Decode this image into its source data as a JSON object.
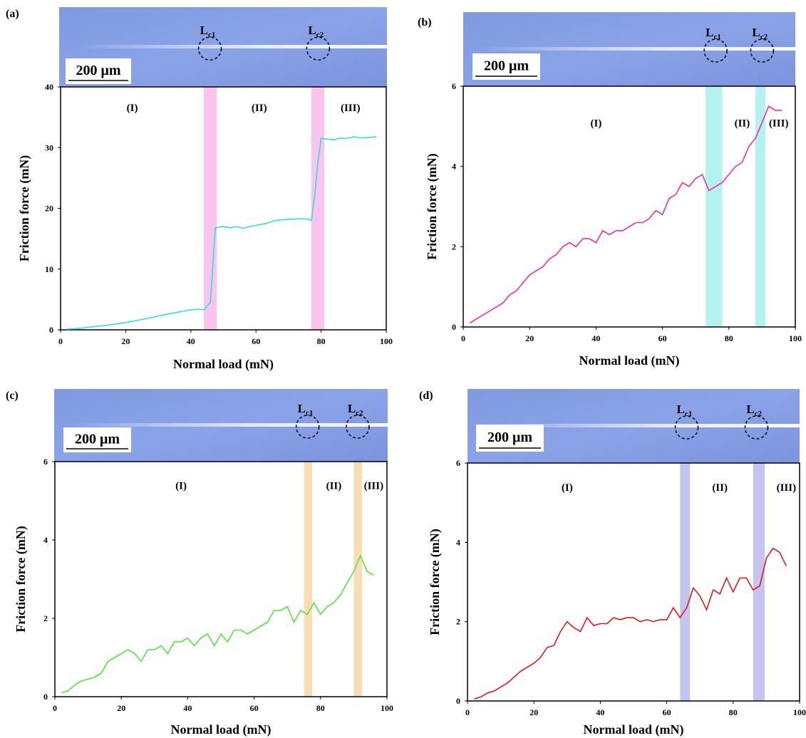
{
  "scale_bar_label": "200 μm",
  "critical_labels": {
    "lc1_main": "L",
    "lc1_sub": "c1",
    "lc2_main": "L",
    "lc2_sub": "c2"
  },
  "chart_data": [
    {
      "panel": "(a)",
      "type": "line",
      "xlabel": "Normal load (mN)",
      "ylabel": "Friction force (mN)",
      "xlim": [
        0,
        100
      ],
      "ylim": [
        0,
        40
      ],
      "xticks": [
        0,
        20,
        40,
        60,
        80,
        100
      ],
      "yticks": [
        0,
        10,
        20,
        30,
        40
      ],
      "line_color": "#33dde0",
      "band_color": "#f9c4ee",
      "bands": [
        [
          44,
          48
        ],
        [
          77,
          81
        ]
      ],
      "regions": [
        {
          "label": "(I)",
          "x": 22,
          "y": 36
        },
        {
          "label": "(II)",
          "x": 61,
          "y": 36
        },
        {
          "label": "(III)",
          "x": 89,
          "y": 36
        }
      ],
      "lc1_fraction": 0.46,
      "lc2_fraction": 0.79,
      "x": [
        2,
        5,
        10,
        15,
        20,
        25,
        28,
        32,
        36,
        40,
        42,
        44,
        46,
        47.5,
        50,
        52,
        54,
        56,
        58,
        60,
        63,
        66,
        70,
        74,
        76,
        77,
        78,
        79,
        80,
        82,
        84,
        86,
        88,
        90,
        92,
        95,
        97
      ],
      "y": [
        0.1,
        0.2,
        0.5,
        0.8,
        1.2,
        1.7,
        2.0,
        2.5,
        2.9,
        3.3,
        3.4,
        3.3,
        4.5,
        16.8,
        17.0,
        16.8,
        17.0,
        16.7,
        17.0,
        17.2,
        17.5,
        18.0,
        18.2,
        18.3,
        18.2,
        18.0,
        22.0,
        27.5,
        31.5,
        31.4,
        31.3,
        31.6,
        31.5,
        31.8,
        31.6,
        31.7,
        31.8
      ]
    },
    {
      "panel": "(b)",
      "type": "line",
      "xlabel": "Normal load (mN)",
      "ylabel": "Friction force (mN)",
      "xlim": [
        0,
        100
      ],
      "ylim": [
        0,
        6
      ],
      "xticks": [
        0,
        20,
        40,
        60,
        80,
        100
      ],
      "yticks": [
        0,
        2,
        4,
        6
      ],
      "line_color": "#ee2fa5",
      "band_color": "#b4f1f1",
      "bands": [
        [
          73,
          78
        ],
        [
          88,
          91
        ]
      ],
      "regions": [
        {
          "label": "(I)",
          "x": 40,
          "y": 5.0
        },
        {
          "label": "(II)",
          "x": 84,
          "y": 5.0
        },
        {
          "label": "(III)",
          "x": 95,
          "y": 5.0
        }
      ],
      "lc1_fraction": 0.76,
      "lc2_fraction": 0.9,
      "x": [
        2,
        4,
        6,
        8,
        10,
        12,
        14,
        16,
        18,
        20,
        22,
        24,
        26,
        28,
        30,
        32,
        34,
        36,
        38,
        40,
        42,
        44,
        46,
        48,
        50,
        52,
        54,
        56,
        58,
        60,
        62,
        64,
        66,
        68,
        70,
        72,
        74,
        76,
        78,
        80,
        82,
        84,
        86,
        88,
        90,
        92,
        94,
        96
      ],
      "y": [
        0.1,
        0.2,
        0.3,
        0.4,
        0.5,
        0.6,
        0.8,
        0.9,
        1.1,
        1.3,
        1.4,
        1.5,
        1.7,
        1.8,
        2.0,
        2.1,
        2.0,
        2.2,
        2.2,
        2.1,
        2.4,
        2.3,
        2.4,
        2.4,
        2.5,
        2.6,
        2.6,
        2.7,
        2.9,
        2.8,
        3.2,
        3.3,
        3.6,
        3.5,
        3.7,
        3.8,
        3.4,
        3.5,
        3.6,
        3.8,
        4.0,
        4.1,
        4.5,
        4.7,
        5.1,
        5.5,
        5.4,
        5.4
      ]
    },
    {
      "panel": "(c)",
      "type": "line",
      "xlabel": "Normal load (mN)",
      "ylabel": "Friction force (mN)",
      "xlim": [
        0,
        100
      ],
      "ylim": [
        0,
        6
      ],
      "xticks": [
        0,
        20,
        40,
        60,
        80,
        100
      ],
      "yticks": [
        0,
        2,
        4,
        6
      ],
      "line_color": "#55e443",
      "band_color": "#f8dcb3",
      "bands": [
        [
          75,
          77.5
        ],
        [
          90,
          92.5
        ]
      ],
      "regions": [
        {
          "label": "(I)",
          "x": 38,
          "y": 5.3
        },
        {
          "label": "(II)",
          "x": 84,
          "y": 5.3
        },
        {
          "label": "(III)",
          "x": 96,
          "y": 5.3
        }
      ],
      "lc1_fraction": 0.76,
      "lc2_fraction": 0.91,
      "x": [
        2,
        4,
        6,
        8,
        10,
        12,
        14,
        16,
        18,
        20,
        22,
        24,
        26,
        28,
        30,
        32,
        34,
        36,
        38,
        40,
        42,
        44,
        46,
        48,
        50,
        52,
        54,
        56,
        58,
        60,
        62,
        64,
        66,
        68,
        70,
        72,
        74,
        76,
        78,
        80,
        82,
        84,
        86,
        88,
        90,
        92,
        94,
        96
      ],
      "y": [
        0.1,
        0.15,
        0.3,
        0.4,
        0.45,
        0.5,
        0.6,
        0.9,
        1.0,
        1.1,
        1.2,
        1.1,
        0.9,
        1.2,
        1.2,
        1.3,
        1.1,
        1.4,
        1.4,
        1.5,
        1.3,
        1.5,
        1.6,
        1.3,
        1.6,
        1.4,
        1.7,
        1.7,
        1.6,
        1.7,
        1.8,
        1.9,
        2.2,
        2.2,
        2.3,
        1.9,
        2.2,
        2.1,
        2.4,
        2.1,
        2.3,
        2.4,
        2.6,
        2.9,
        3.2,
        3.6,
        3.2,
        3.1
      ]
    },
    {
      "panel": "(d)",
      "type": "line",
      "xlabel": "Normal load (mN)",
      "ylabel": "Friction force (mN)",
      "xlim": [
        0,
        100
      ],
      "ylim": [
        0,
        6
      ],
      "xticks": [
        0,
        20,
        40,
        60,
        80,
        100
      ],
      "yticks": [
        0,
        2,
        4,
        6
      ],
      "line_color": "#e01a1a",
      "band_color": "#c4c4ef",
      "bands": [
        [
          64,
          67
        ],
        [
          86,
          89.5
        ]
      ],
      "regions": [
        {
          "label": "(I)",
          "x": 30,
          "y": 5.3
        },
        {
          "label": "(II)",
          "x": 76,
          "y": 5.3
        },
        {
          "label": "(III)",
          "x": 96,
          "y": 5.3
        }
      ],
      "lc1_fraction": 0.66,
      "lc2_fraction": 0.87,
      "x": [
        2,
        4,
        6,
        8,
        10,
        12,
        14,
        16,
        18,
        20,
        22,
        24,
        26,
        28,
        30,
        32,
        34,
        36,
        38,
        40,
        42,
        44,
        46,
        48,
        50,
        52,
        54,
        56,
        58,
        60,
        62,
        64,
        66,
        68,
        70,
        72,
        74,
        76,
        78,
        80,
        82,
        84,
        86,
        88,
        90,
        92,
        94,
        96
      ],
      "y": [
        0.05,
        0.1,
        0.2,
        0.25,
        0.35,
        0.45,
        0.6,
        0.75,
        0.85,
        0.95,
        1.1,
        1.35,
        1.4,
        1.75,
        2.0,
        1.85,
        1.75,
        2.1,
        1.9,
        1.95,
        1.95,
        2.1,
        2.05,
        2.1,
        2.1,
        2.0,
        2.05,
        2.0,
        2.05,
        2.05,
        2.35,
        2.1,
        2.35,
        2.85,
        2.65,
        2.3,
        2.8,
        2.7,
        3.1,
        2.75,
        3.1,
        3.1,
        2.8,
        2.9,
        3.6,
        3.85,
        3.75,
        3.4
      ]
    }
  ]
}
